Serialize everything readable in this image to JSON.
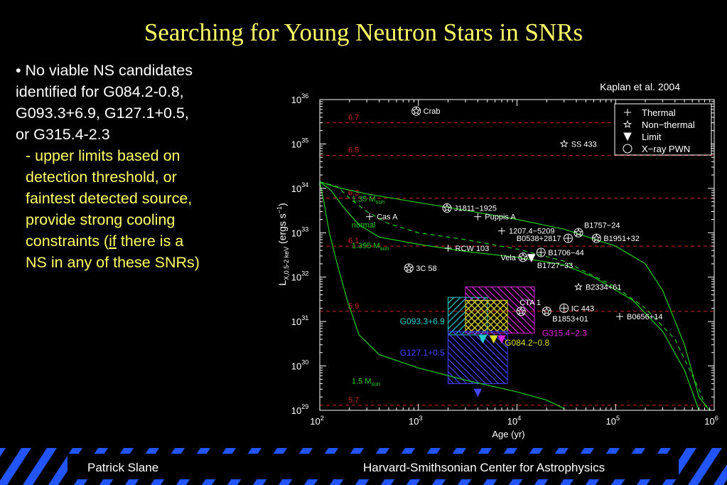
{
  "slide": {
    "title": "Searching for Young Neutron Stars in SNRs",
    "bullets": {
      "main": [
        "• No viable NS candidates",
        "identified for G084.2-0.8,",
        "G093.3+6.9, G127.1+0.5,",
        "or G315.4-2.3"
      ],
      "sub": [
        "- upper limits based on",
        "detection threshold, or",
        "faintest detected source,",
        "provide strong cooling"
      ],
      "sub_if_before": "constraints (",
      "sub_if_word": "if",
      "sub_if_after": " there is a",
      "sub_last": "NS in any of these SNRs)"
    }
  },
  "footer": {
    "left": "Patrick Slane",
    "right": "Harvard-Smithsonian Center for Astrophysics"
  },
  "colors": {
    "title": "#ffff66",
    "bullet_sub": "#ffff66",
    "footer_stripe": "#2255ff",
    "green": "#22cc22",
    "red_dash": "#cc2222",
    "cyan": "#22cccc",
    "magenta": "#dd22dd",
    "yellow": "#dddd22",
    "blue": "#4444ff"
  },
  "chart_data": {
    "type": "scatter",
    "citation": "Kaplan et al. 2004",
    "xlabel": "Age (yr)",
    "ylabel_main": "L",
    "ylabel_sub": "X,0.5-2 keV",
    "ylabel_unit": "(ergs s",
    "ylabel_exp": "−1",
    "ylabel_close": ")",
    "x_scale": "log",
    "y_scale": "log",
    "xlim": [
      100,
      1000000
    ],
    "ylim": [
      1e+29,
      1e+36
    ],
    "x_ticks": [
      {
        "base": "10",
        "exp": "2",
        "value": 100
      },
      {
        "base": "10",
        "exp": "3",
        "value": 1000
      },
      {
        "base": "10",
        "exp": "4",
        "value": 10000
      },
      {
        "base": "10",
        "exp": "5",
        "value": 100000
      },
      {
        "base": "10",
        "exp": "6",
        "value": 1000000
      }
    ],
    "y_ticks": [
      {
        "base": "10",
        "exp": "29",
        "value": 1e+29
      },
      {
        "base": "10",
        "exp": "30",
        "value": 1e+30
      },
      {
        "base": "10",
        "exp": "31",
        "value": 1e+31
      },
      {
        "base": "10",
        "exp": "32",
        "value": 1e+32
      },
      {
        "base": "10",
        "exp": "33",
        "value": 1e+33
      },
      {
        "base": "10",
        "exp": "34",
        "value": 1e+34
      },
      {
        "base": "10",
        "exp": "35",
        "value": 1e+35
      },
      {
        "base": "10",
        "exp": "36",
        "value": 1e+36
      }
    ],
    "legend_position": "top-right",
    "legend": [
      {
        "symbol": "plus",
        "label": "Thermal"
      },
      {
        "symbol": "star",
        "label": "Non−thermal"
      },
      {
        "symbol": "triangle",
        "label": "Limit"
      },
      {
        "symbol": "circle",
        "label": "X−ray PWN"
      }
    ],
    "temperature_lines": [
      {
        "label": "6.7",
        "L": 3e+35
      },
      {
        "label": "6.5",
        "L": 5.5e+34
      },
      {
        "label": "6.3",
        "L": 6e+33
      },
      {
        "label": "6.1",
        "L": 5e+32
      },
      {
        "label": "5.9",
        "L": 1.7e+31
      },
      {
        "label": "5.7",
        "L": 1.3e+29
      }
    ],
    "cooling_curves": [
      {
        "label": "1.35 M",
        "sub": "sun",
        "label_age": 270,
        "label_L": 5e+33,
        "dashed": false,
        "points": [
          [
            100,
            1.4e+34
          ],
          [
            150,
            1.05e+34
          ],
          [
            300,
            7.5e+33
          ],
          [
            1000,
            4.8e+33
          ],
          [
            3000,
            3.2e+33
          ],
          [
            10000,
            2e+33
          ],
          [
            30000,
            1.2e+33
          ],
          [
            100000,
            5e+32
          ],
          [
            200000,
            2e+32
          ],
          [
            300000,
            5e+31
          ],
          [
            500000,
            3e+30
          ],
          [
            700000,
            2e+29
          ],
          [
            900000,
            1e+29
          ]
        ]
      },
      {
        "label": "normal",
        "sub": "",
        "label_age": 270,
        "label_L": 1.3e+33,
        "dashed": true,
        "points": [
          [
            100,
            1.4e+34
          ],
          [
            150,
            1.1e+34
          ],
          [
            200,
            6e+33
          ],
          [
            300,
            3e+33
          ],
          [
            500,
            1.6e+33
          ],
          [
            1000,
            1e+33
          ],
          [
            3000,
            7e+32
          ],
          [
            10000,
            4.3e+32
          ],
          [
            30000,
            2.3e+32
          ],
          [
            100000,
            6e+31
          ],
          [
            200000,
            2e+31
          ],
          [
            400000,
            4e+30
          ],
          [
            700000,
            3e+29
          ],
          [
            850000,
            1e+29
          ]
        ]
      },
      {
        "label": "1.395 M",
        "sub": "sun",
        "label_age": 270,
        "label_L": 4.5e+32,
        "dashed": false,
        "points": [
          [
            100,
            1.4e+34
          ],
          [
            130,
            9e+33
          ],
          [
            170,
            4e+33
          ],
          [
            250,
            1.5e+33
          ],
          [
            400,
            8e+32
          ],
          [
            1000,
            5.5e+32
          ],
          [
            3000,
            3.8e+32
          ],
          [
            10000,
            2.8e+32
          ],
          [
            30000,
            1.9e+32
          ],
          [
            60000,
            1e+32
          ],
          [
            150000,
            3e+31
          ],
          [
            300000,
            6e+30
          ],
          [
            500000,
            8e+29
          ],
          [
            700000,
            1e+29
          ]
        ]
      },
      {
        "label": "1.5 M",
        "sub": "sun",
        "label_age": 270,
        "label_L": 4e+29,
        "dashed": false,
        "points": [
          [
            100,
            1.4e+34
          ],
          [
            110,
            5e+33
          ],
          [
            125,
            1e+33
          ],
          [
            150,
            2e+32
          ],
          [
            190,
            3e+31
          ],
          [
            250,
            5e+30
          ],
          [
            400,
            1.8e+30
          ],
          [
            1000,
            9e+29
          ],
          [
            3000,
            4.8e+29
          ],
          [
            10000,
            2.6e+29
          ],
          [
            20000,
            1.7e+29
          ],
          [
            30000,
            1.1e+29
          ]
        ]
      }
    ],
    "sources": [
      {
        "name": "Crab",
        "age": 950,
        "L": 5.5e+35,
        "symbol": "star-circle",
        "label_pos": "right"
      },
      {
        "name": "SS 433",
        "age": 30000,
        "L": 1e+35,
        "symbol": "star",
        "label_pos": "right"
      },
      {
        "name": "J1811−1925",
        "age": 1950,
        "L": 3.6e+33,
        "symbol": "star-circle",
        "label_pos": "right"
      },
      {
        "name": "Cas A",
        "age": 320,
        "L": 2.3e+33,
        "symbol": "plus",
        "label_pos": "right"
      },
      {
        "name": "Puppis A",
        "age": 4000,
        "L": 2.3e+33,
        "symbol": "plus",
        "label_pos": "right"
      },
      {
        "name": "1207.4−5209",
        "age": 7000,
        "L": 1.1e+33,
        "symbol": "plus",
        "label_pos": "right"
      },
      {
        "name": "B0538+2817",
        "age": 33000,
        "L": 7.5e+32,
        "symbol": "plus-circle",
        "label_pos": "left"
      },
      {
        "name": "B1757−24",
        "age": 42000,
        "L": 1e+33,
        "symbol": "star-circle",
        "label_pos": "upper-right"
      },
      {
        "name": "B1951+32",
        "age": 64000,
        "L": 7.5e+32,
        "symbol": "star-circle",
        "label_pos": "right"
      },
      {
        "name": "RCW 103",
        "age": 2000,
        "L": 4.5e+32,
        "symbol": "plus",
        "label_pos": "right"
      },
      {
        "name": "Vela",
        "age": 11500,
        "L": 2.8e+32,
        "symbol": "star-circle",
        "label_pos": "left"
      },
      {
        "name": "B1706−44",
        "age": 17500,
        "L": 3.6e+32,
        "symbol": "plus-circle",
        "label_pos": "right"
      },
      {
        "name": "B1727−33",
        "age": 14000,
        "L": 2.7e+32,
        "symbol": "triangle",
        "label_pos": "lower-right"
      },
      {
        "name": "3C 58",
        "age": 800,
        "L": 1.6e+32,
        "symbol": "star-circle",
        "label_pos": "right"
      },
      {
        "name": "B2334+61",
        "age": 42000,
        "L": 6e+31,
        "symbol": "star",
        "label_pos": "right"
      },
      {
        "name": "CTA 1",
        "age": 11000,
        "L": 1.7e+31,
        "symbol": "star-circle",
        "label_pos": "upper"
      },
      {
        "name": "B1853+01",
        "age": 20000,
        "L": 1.7e+31,
        "symbol": "star-circle",
        "label_pos": "lower-right"
      },
      {
        "name": "IC 443",
        "age": 30000,
        "L": 2e+31,
        "symbol": "plus-circle",
        "label_pos": "right"
      },
      {
        "name": "B0656+14",
        "age": 110000,
        "L": 1.3e+31,
        "symbol": "plus",
        "label_pos": "right"
      }
    ],
    "snr_regions": [
      {
        "name": "G093.3+6.9",
        "color": "#22cccc",
        "age": [
          2000,
          5000
        ],
        "L": [
          5e+30,
          3.5e+31
        ],
        "hatch": "up"
      },
      {
        "name": "G315.4−2.3",
        "color": "#dd22dd",
        "age": [
          3000,
          15000
        ],
        "L": [
          5.5e+30,
          6e+31
        ],
        "hatch": "down"
      },
      {
        "name": "G084.2−0.8",
        "color": "#dddd22",
        "age": [
          3000,
          8000
        ],
        "L": [
          6e+30,
          3e+31
        ],
        "hatch": "cross"
      },
      {
        "name": "G127.1+0.5",
        "color": "#4444ff",
        "age": [
          2000,
          8000
        ],
        "L": [
          4e+29,
          6e+30
        ],
        "hatch": "down"
      }
    ],
    "snr_labels": [
      {
        "name": "G093.3+6.9",
        "color": "#22cccc",
        "age": 650,
        "L": 1e+31
      },
      {
        "name": "G315.4−2.3",
        "color": "#dd22dd",
        "age": 18000,
        "L": 5.5e+30
      },
      {
        "name": "G084.2−0.8",
        "color": "#dddd22",
        "age": 7500,
        "L": 3.3e+30
      },
      {
        "name": "G127.1+0.5",
        "color": "#4444ff",
        "age": 650,
        "L": 2e+30
      }
    ],
    "upper_limits": [
      {
        "region": "G093.3+6.9",
        "age": 4500,
        "L": 4e+30,
        "color": "#22cccc"
      },
      {
        "region": "G084.2−0.8",
        "age": 5800,
        "L": 4e+30,
        "color": "#dddd22"
      },
      {
        "region": "G315.4−2.3",
        "age": 7000,
        "L": 4e+30,
        "color": "#dd22dd"
      },
      {
        "region": "G127.1+0.5",
        "age": 4000,
        "L": 2.5e+29,
        "color": "#4444ff"
      }
    ]
  }
}
